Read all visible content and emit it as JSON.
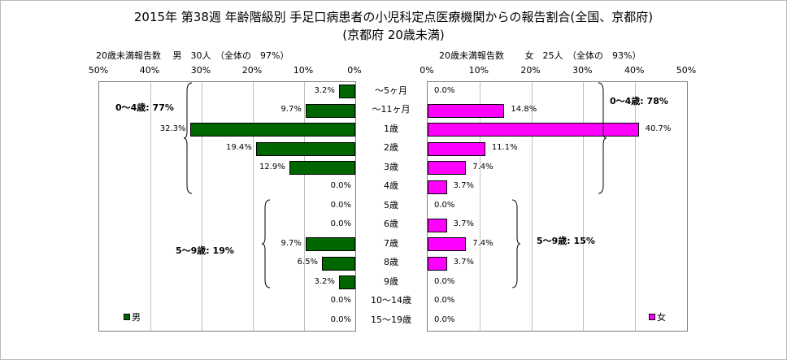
{
  "title_line1": "2015年 第38週 年齢階級別 手足口病患者の小児科定点医療機関からの報告割合(全国、京都府)",
  "title_line2": "(京都府 20歳未満)",
  "left_header": "20歳未満報告数　 男　30人　（全体の　97%）",
  "right_header": "20歳未満報告数　　 女　25人　（全体の　93%）",
  "axis_ticks_left": [
    "50%",
    "40%",
    "30%",
    "20%",
    "10%",
    "0%"
  ],
  "axis_ticks_right": [
    "0%",
    "10%",
    "20%",
    "30%",
    "40%",
    "50%"
  ],
  "group_labels": {
    "male_0_4": "0～4歳: 77%",
    "male_5_9": "5～9歳: 19%",
    "female_0_4": "0～4歳: 78%",
    "female_5_9": "5～9歳: 15%"
  },
  "colors": {
    "male": "#006600",
    "female": "#ff00ff",
    "grid": "#bfbfbf"
  },
  "chart_data": {
    "type": "bar",
    "orientation": "horizontal",
    "categories": [
      "～5ヶ月",
      "～11ヶ月",
      "1歳",
      "2歳",
      "3歳",
      "4歳",
      "5歳",
      "6歳",
      "7歳",
      "8歳",
      "9歳",
      "10～14歳",
      "15～19歳"
    ],
    "xlim": [
      0,
      50
    ],
    "series": [
      {
        "name": "男",
        "values": [
          3.2,
          9.7,
          32.3,
          19.4,
          12.9,
          0.0,
          0.0,
          0.0,
          9.7,
          6.5,
          3.2,
          0.0,
          0.0
        ],
        "labels": [
          "3.2%",
          "9.7%",
          "32.3%",
          "19.4%",
          "12.9%",
          "0.0%",
          "0.0%",
          "0.0%",
          "9.7%",
          "6.5%",
          "3.2%",
          "0.0%",
          "0.0%"
        ]
      },
      {
        "name": "女",
        "values": [
          0.0,
          14.8,
          40.7,
          11.1,
          7.4,
          3.7,
          0.0,
          3.7,
          7.4,
          3.7,
          0.0,
          0.0,
          0.0
        ],
        "labels": [
          "0.0%",
          "14.8%",
          "40.7%",
          "11.1%",
          "7.4%",
          "3.7%",
          "0.0%",
          "3.7%",
          "7.4%",
          "3.7%",
          "0.0%",
          "0.0%",
          "0.0%"
        ]
      }
    ],
    "grid": true,
    "legend_position": "bottom-inside"
  }
}
